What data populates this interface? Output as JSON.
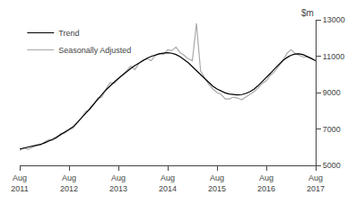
{
  "chart_data": {
    "type": "line",
    "ylabel": "$m",
    "categories": [
      "Aug\n2011",
      null,
      null,
      null,
      null,
      null,
      null,
      null,
      null,
      null,
      null,
      null,
      "Aug\n2012",
      null,
      null,
      null,
      null,
      null,
      null,
      null,
      null,
      null,
      null,
      null,
      "Aug\n2013",
      null,
      null,
      null,
      null,
      null,
      null,
      null,
      null,
      null,
      null,
      null,
      "Aug\n2014",
      null,
      null,
      null,
      null,
      null,
      null,
      null,
      null,
      null,
      null,
      null,
      "Aug\n2015",
      null,
      null,
      null,
      null,
      null,
      null,
      null,
      null,
      null,
      null,
      null,
      "Aug\n2016",
      null,
      null,
      null,
      null,
      null,
      null,
      null,
      null,
      null,
      null,
      null,
      "Aug\n2017"
    ],
    "series": [
      {
        "name": "Seasonally Adjusted",
        "color": "#aaaaaa",
        "values": [
          5820,
          5950,
          5880,
          6000,
          6080,
          6100,
          6280,
          6400,
          6380,
          6520,
          6750,
          6780,
          6950,
          7050,
          7300,
          7600,
          7950,
          8050,
          8350,
          8700,
          8750,
          9200,
          9550,
          9500,
          9750,
          9950,
          10200,
          10450,
          10250,
          10600,
          10800,
          10850,
          10750,
          11050,
          11150,
          11100,
          11350,
          11300,
          11500,
          11200,
          11050,
          10850,
          10750,
          12800,
          10200,
          9800,
          9450,
          9200,
          9000,
          8900,
          8650,
          8650,
          8750,
          8700,
          8600,
          8750,
          8900,
          9050,
          9250,
          9500,
          9650,
          9950,
          10150,
          10450,
          10750,
          11150,
          11350,
          11150,
          11050,
          10950,
          10950,
          10850,
          10750
        ]
      },
      {
        "name": "Trend",
        "color": "#000000",
        "values": [
          5900,
          5950,
          5980,
          6020,
          6080,
          6150,
          6230,
          6320,
          6430,
          6550,
          6680,
          6820,
          6970,
          7120,
          7350,
          7600,
          7850,
          8100,
          8380,
          8650,
          8900,
          9150,
          9380,
          9580,
          9780,
          9970,
          10150,
          10320,
          10480,
          10630,
          10770,
          10890,
          10990,
          11070,
          11130,
          11170,
          11190,
          11160,
          11090,
          10980,
          10830,
          10640,
          10420,
          10200,
          9970,
          9750,
          9530,
          9350,
          9200,
          9080,
          8980,
          8920,
          8880,
          8870,
          8890,
          8950,
          9050,
          9190,
          9380,
          9590,
          9820,
          10060,
          10300,
          10540,
          10750,
          10920,
          11050,
          11120,
          11130,
          11080,
          10990,
          10870,
          10750
        ]
      }
    ],
    "ylim": [
      5000,
      13000
    ],
    "yticks": [
      5000,
      7000,
      9000,
      11000,
      13000
    ],
    "legend": "upper left",
    "grid": false
  }
}
